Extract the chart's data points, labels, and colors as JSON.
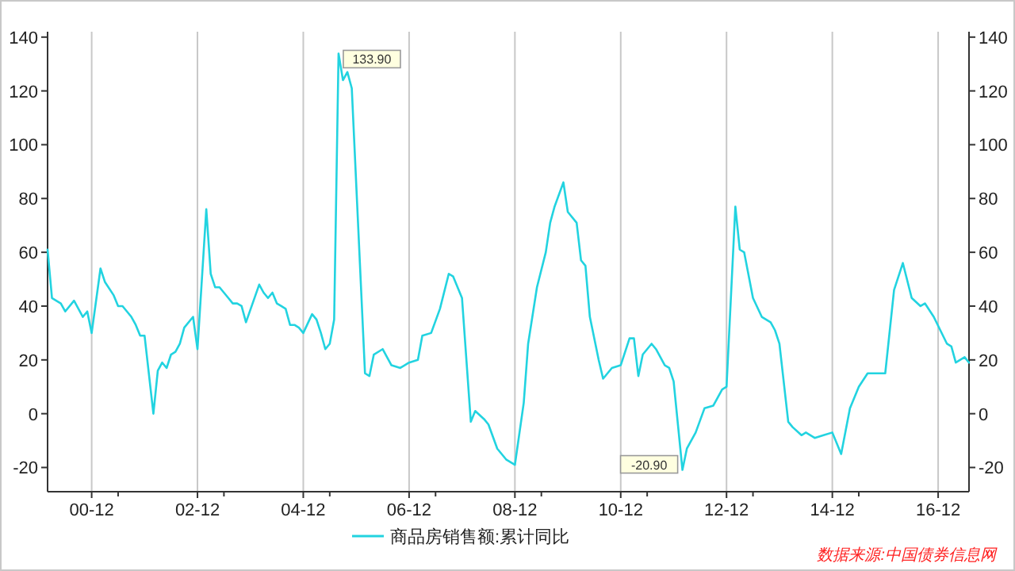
{
  "chart_data": {
    "type": "line",
    "x": [
      "2000-02",
      "2000-03",
      "2000-05",
      "2000-06",
      "2000-08",
      "2000-10",
      "2000-11",
      "2000-12",
      "2001-02",
      "2001-03",
      "2001-05",
      "2001-06",
      "2001-07",
      "2001-09",
      "2001-10",
      "2001-11",
      "2001-12",
      "2002-02",
      "2002-03",
      "2002-04",
      "2002-05",
      "2002-06",
      "2002-07",
      "2002-08",
      "2002-09",
      "2002-11",
      "2002-12",
      "2003-02",
      "2003-03",
      "2003-04",
      "2003-05",
      "2003-06",
      "2003-07",
      "2003-08",
      "2003-09",
      "2003-10",
      "2003-11",
      "2004-02",
      "2004-03",
      "2004-04",
      "2004-05",
      "2004-06",
      "2004-07",
      "2004-08",
      "2004-09",
      "2004-10",
      "2004-11",
      "2004-12",
      "2005-02",
      "2005-03",
      "2005-04",
      "2005-05",
      "2005-06",
      "2005-07",
      "2005-08",
      "2005-09",
      "2005-10",
      "2005-11",
      "2006-02",
      "2006-03",
      "2006-04",
      "2006-06",
      "2006-08",
      "2006-10",
      "2006-12",
      "2007-02",
      "2007-03",
      "2007-05",
      "2007-07",
      "2007-09",
      "2007-10",
      "2007-12",
      "2008-02",
      "2008-03",
      "2008-05",
      "2008-06",
      "2008-08",
      "2008-10",
      "2008-12",
      "2009-02",
      "2009-03",
      "2009-05",
      "2009-07",
      "2009-08",
      "2009-09",
      "2009-11",
      "2009-12",
      "2010-02",
      "2010-03",
      "2010-04",
      "2010-05",
      "2010-07",
      "2010-08",
      "2010-10",
      "2010-12",
      "2011-02",
      "2011-03",
      "2011-04",
      "2011-05",
      "2011-07",
      "2011-08",
      "2011-10",
      "2011-11",
      "2011-12",
      "2012-02",
      "2012-03",
      "2012-05",
      "2012-07",
      "2012-09",
      "2012-11",
      "2012-12",
      "2013-02",
      "2013-03",
      "2013-04",
      "2013-06",
      "2013-08",
      "2013-10",
      "2013-11",
      "2013-12",
      "2014-02",
      "2014-03",
      "2014-05",
      "2014-06",
      "2014-08",
      "2014-10",
      "2014-12",
      "2015-02",
      "2015-04",
      "2015-06",
      "2015-08",
      "2015-10",
      "2015-12",
      "2016-02",
      "2016-04",
      "2016-06",
      "2016-08",
      "2016-09",
      "2016-11",
      "2017-02",
      "2017-03",
      "2017-04",
      "2017-06",
      "2017-07"
    ],
    "series": [
      {
        "name": "商品房销售额:累计同比",
        "color": "#22d3e0",
        "values": [
          61,
          43,
          41,
          38,
          42,
          36,
          38,
          30,
          54,
          49,
          44,
          40,
          40,
          36,
          33,
          29,
          29,
          0,
          16,
          19,
          17,
          22,
          23,
          26,
          32,
          36,
          24,
          76,
          52,
          47,
          47,
          45,
          43,
          41,
          41,
          40,
          34,
          48,
          45,
          43,
          45,
          41,
          40,
          39,
          33,
          33,
          32,
          30,
          37,
          35,
          30,
          24,
          26,
          35,
          133.9,
          124,
          127,
          121,
          15,
          14,
          22,
          24,
          18,
          17,
          19,
          20,
          29,
          30,
          39,
          52,
          51,
          43,
          -3,
          1,
          -2,
          -4,
          -13,
          -17,
          -19,
          4,
          26,
          47,
          60,
          71,
          77,
          86,
          75,
          71,
          57,
          55,
          36,
          20,
          13,
          17,
          18,
          28,
          28,
          14,
          22,
          26,
          24,
          18,
          17,
          12,
          -20.9,
          -13,
          -7,
          2,
          3,
          9,
          10,
          77,
          61,
          60,
          43,
          36,
          34,
          31,
          26,
          -3,
          -5,
          -8,
          -7,
          -9,
          -8,
          -7,
          -15,
          2,
          10,
          15,
          15,
          15,
          46,
          56,
          43,
          40,
          41,
          36,
          26,
          25,
          19,
          21,
          19
        ]
      }
    ],
    "xlim": [
      "2000-02",
      "2017-07"
    ],
    "xticks": [
      {
        "value": "2000-12",
        "label": "00-12"
      },
      {
        "value": "2001-06",
        "label": null
      },
      {
        "value": "2002-12",
        "label": "02-12"
      },
      {
        "value": "2003-06",
        "label": null
      },
      {
        "value": "2004-12",
        "label": "04-12"
      },
      {
        "value": "2005-06",
        "label": null
      },
      {
        "value": "2006-12",
        "label": "06-12"
      },
      {
        "value": "2007-06",
        "label": null
      },
      {
        "value": "2008-12",
        "label": "08-12"
      },
      {
        "value": "2009-06",
        "label": null
      },
      {
        "value": "2010-12",
        "label": "10-12"
      },
      {
        "value": "2011-06",
        "label": null
      },
      {
        "value": "2012-12",
        "label": "12-12"
      },
      {
        "value": "2013-06",
        "label": null
      },
      {
        "value": "2014-12",
        "label": "14-12"
      },
      {
        "value": "2015-06",
        "label": null
      },
      {
        "value": "2016-12",
        "label": "16-12"
      }
    ],
    "ylim": [
      -29,
      142
    ],
    "yticks": [
      -20,
      0,
      20,
      40,
      60,
      80,
      100,
      120,
      140
    ],
    "y2lim": [
      -29,
      142
    ],
    "y2ticks": [
      -20,
      0,
      20,
      40,
      60,
      80,
      100,
      120,
      140
    ],
    "grid": "x",
    "legend": "bottom",
    "marker": "none",
    "line_style": "solid",
    "annotations": [
      {
        "text": "133.90",
        "x": "2005-08",
        "y": 133.9
      },
      {
        "text": "-20.90",
        "x": "2012-02",
        "y": -20.9
      },
      "数据来源:中国债券信息网"
    ]
  }
}
